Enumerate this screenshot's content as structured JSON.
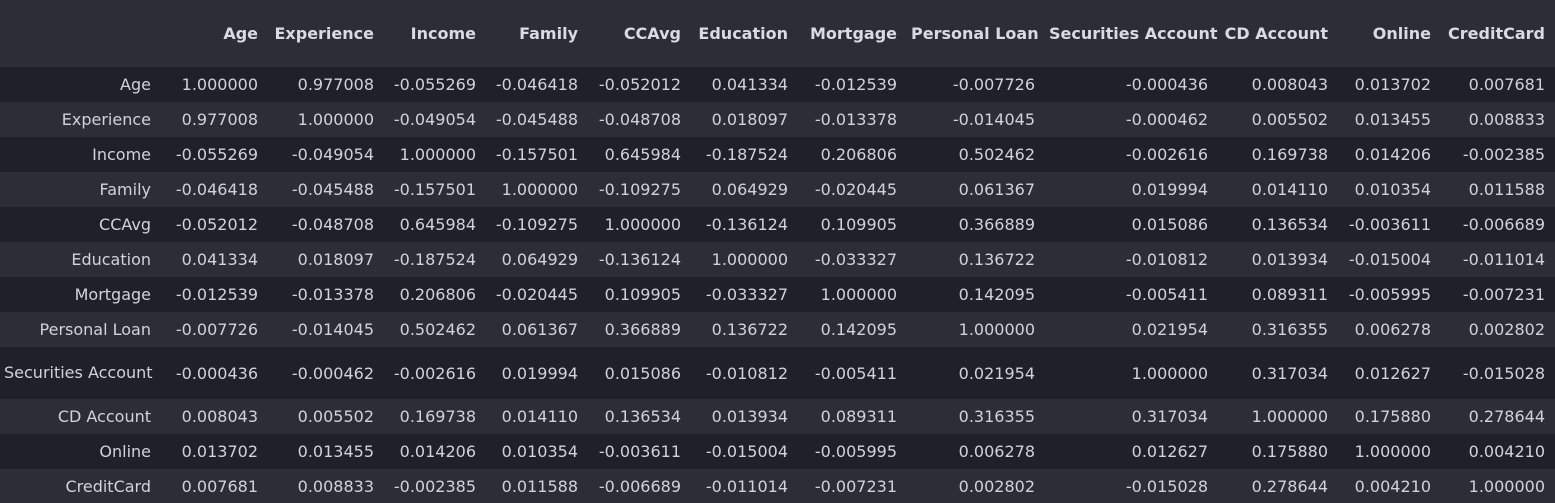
{
  "table": {
    "index_header": "",
    "columns": [
      "Age",
      "Experience",
      "Income",
      "Family",
      "CCAvg",
      "Education",
      "Mortgage",
      "Personal Loan",
      "Securities Account",
      "CD Account",
      "Online",
      "CreditCard"
    ],
    "rows": [
      {
        "label": "Age",
        "values": [
          "1.000000",
          "0.977008",
          "-0.055269",
          "-0.046418",
          "-0.052012",
          "0.041334",
          "-0.012539",
          "-0.007726",
          "-0.000436",
          "0.008043",
          "0.013702",
          "0.007681"
        ]
      },
      {
        "label": "Experience",
        "values": [
          "0.977008",
          "1.000000",
          "-0.049054",
          "-0.045488",
          "-0.048708",
          "0.018097",
          "-0.013378",
          "-0.014045",
          "-0.000462",
          "0.005502",
          "0.013455",
          "0.008833"
        ]
      },
      {
        "label": "Income",
        "values": [
          "-0.055269",
          "-0.049054",
          "1.000000",
          "-0.157501",
          "0.645984",
          "-0.187524",
          "0.206806",
          "0.502462",
          "-0.002616",
          "0.169738",
          "0.014206",
          "-0.002385"
        ]
      },
      {
        "label": "Family",
        "values": [
          "-0.046418",
          "-0.045488",
          "-0.157501",
          "1.000000",
          "-0.109275",
          "0.064929",
          "-0.020445",
          "0.061367",
          "0.019994",
          "0.014110",
          "0.010354",
          "0.011588"
        ]
      },
      {
        "label": "CCAvg",
        "values": [
          "-0.052012",
          "-0.048708",
          "0.645984",
          "-0.109275",
          "1.000000",
          "-0.136124",
          "0.109905",
          "0.366889",
          "0.015086",
          "0.136534",
          "-0.003611",
          "-0.006689"
        ]
      },
      {
        "label": "Education",
        "values": [
          "0.041334",
          "0.018097",
          "-0.187524",
          "0.064929",
          "-0.136124",
          "1.000000",
          "-0.033327",
          "0.136722",
          "-0.010812",
          "0.013934",
          "-0.015004",
          "-0.011014"
        ]
      },
      {
        "label": "Mortgage",
        "values": [
          "-0.012539",
          "-0.013378",
          "0.206806",
          "-0.020445",
          "0.109905",
          "-0.033327",
          "1.000000",
          "0.142095",
          "-0.005411",
          "0.089311",
          "-0.005995",
          "-0.007231"
        ]
      },
      {
        "label": "Personal Loan",
        "values": [
          "-0.007726",
          "-0.014045",
          "0.502462",
          "0.061367",
          "0.366889",
          "0.136722",
          "0.142095",
          "1.000000",
          "0.021954",
          "0.316355",
          "0.006278",
          "0.002802"
        ]
      },
      {
        "label": "Securities Account",
        "values": [
          "-0.000436",
          "-0.000462",
          "-0.002616",
          "0.019994",
          "0.015086",
          "-0.010812",
          "-0.005411",
          "0.021954",
          "1.000000",
          "0.317034",
          "0.012627",
          "-0.015028"
        ]
      },
      {
        "label": "CD Account",
        "values": [
          "0.008043",
          "0.005502",
          "0.169738",
          "0.014110",
          "0.136534",
          "0.013934",
          "0.089311",
          "0.316355",
          "0.317034",
          "1.000000",
          "0.175880",
          "0.278644"
        ]
      },
      {
        "label": "Online",
        "values": [
          "0.013702",
          "0.013455",
          "0.014206",
          "0.010354",
          "-0.003611",
          "-0.015004",
          "-0.005995",
          "0.006278",
          "0.012627",
          "0.175880",
          "1.000000",
          "0.004210"
        ]
      },
      {
        "label": "CreditCard",
        "values": [
          "0.007681",
          "0.008833",
          "-0.002385",
          "0.011588",
          "-0.006689",
          "-0.011014",
          "-0.007231",
          "0.002802",
          "-0.015028",
          "0.278644",
          "0.004210",
          "1.000000"
        ]
      }
    ]
  }
}
